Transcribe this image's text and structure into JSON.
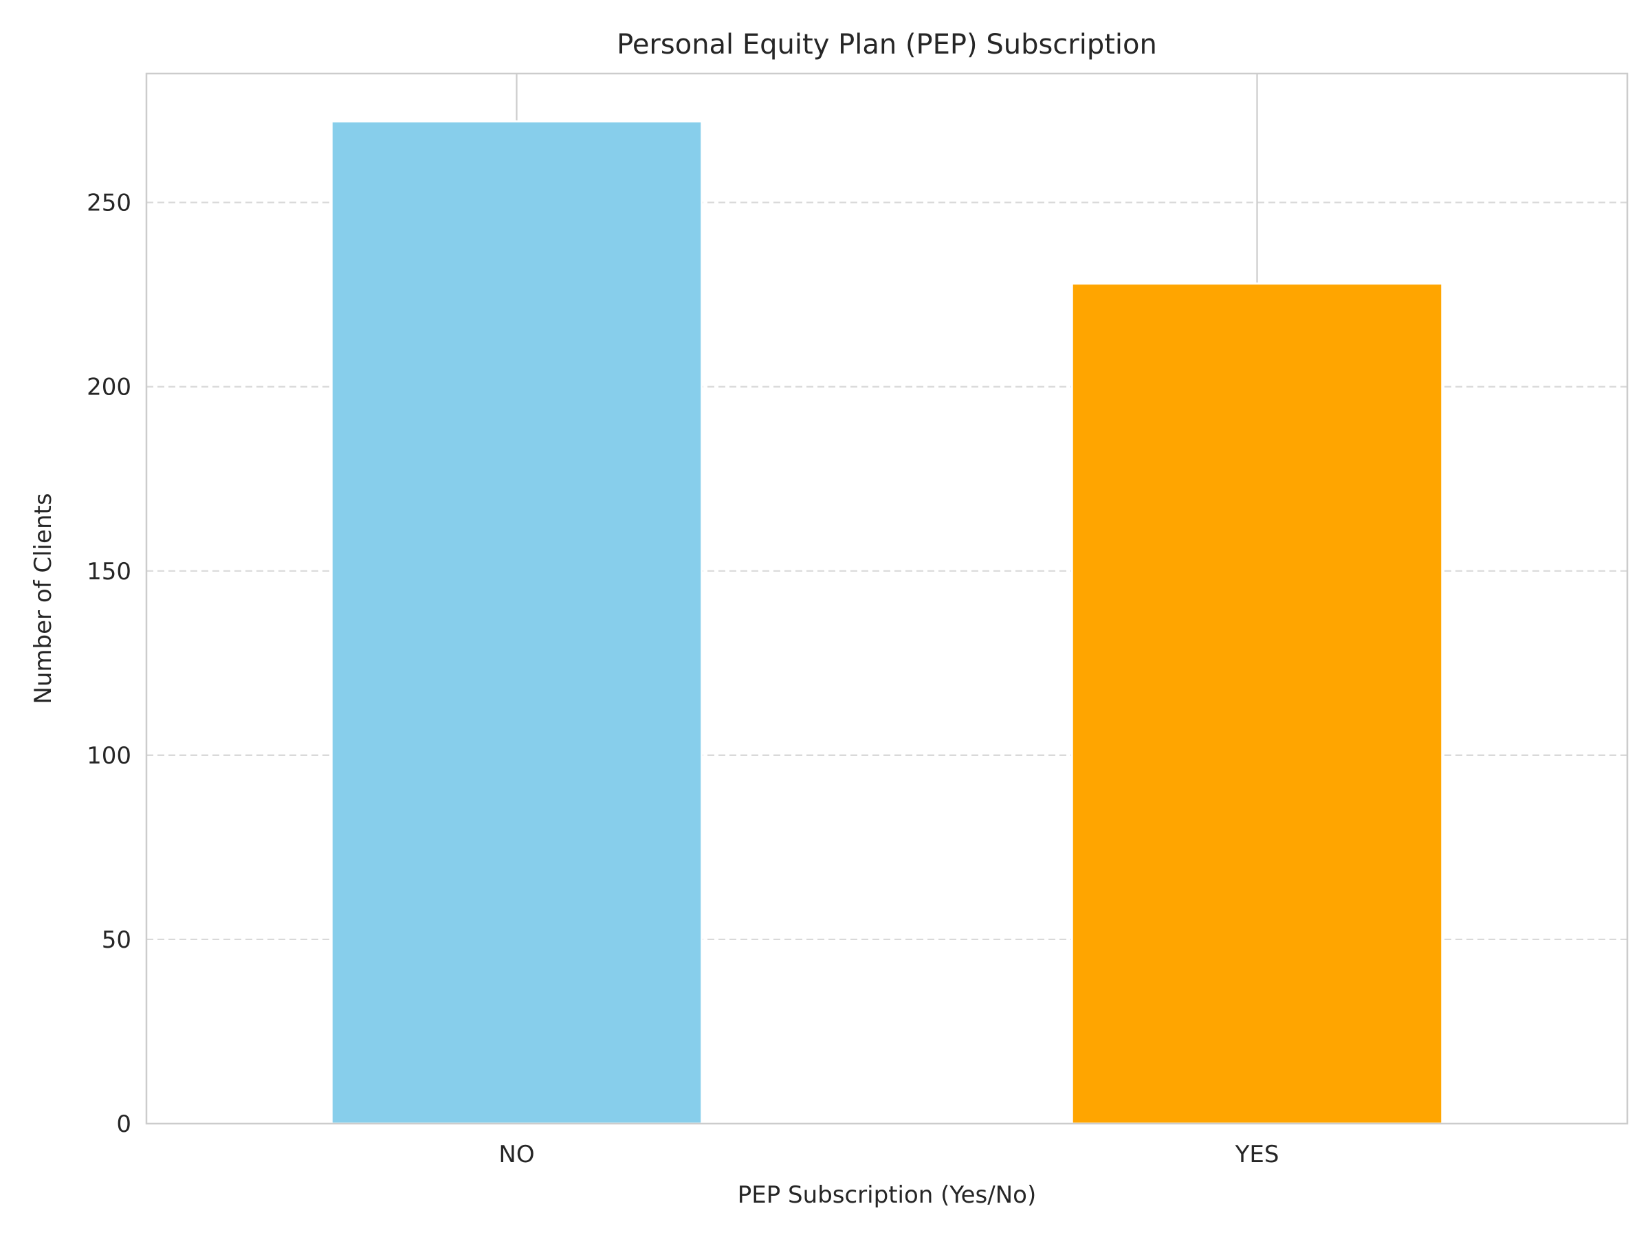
{
  "chart_data": {
    "type": "bar",
    "title": "Personal Equity Plan (PEP) Subscription",
    "xlabel": "PEP Subscription (Yes/No)",
    "ylabel": "Number of Clients",
    "categories": [
      "NO",
      "YES"
    ],
    "values": [
      272,
      228
    ],
    "colors": [
      "#87CEEB",
      "#FFA500"
    ],
    "ylim": [
      0,
      285
    ],
    "yticks": [
      0,
      50,
      100,
      150,
      200,
      250
    ],
    "grid": "y, dashed",
    "legend": "none"
  }
}
